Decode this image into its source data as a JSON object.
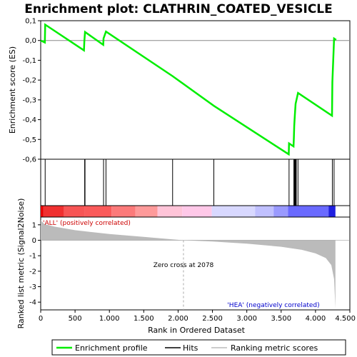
{
  "chart_data": {
    "type": "line",
    "title": "Enrichment plot: CLATHRIN_COATED_VESICLE",
    "xlabel": "Rank in Ordered Dataset",
    "ylabel_top": "Enrichment score (ES)",
    "ylabel_bottom": "Ranked list metric (Signal2Noise)",
    "xlim": [
      0,
      4500
    ],
    "ylim_top": [
      -0.6,
      0.1
    ],
    "ylim_bottom": [
      -4.5,
      1.5
    ],
    "x_ticks": [
      0,
      500,
      1000,
      1500,
      2000,
      2500,
      3000,
      3500,
      4000,
      4500
    ],
    "x_tick_labels": [
      "0",
      "500",
      "1.000",
      "1.500",
      "2.000",
      "2.500",
      "3.000",
      "3.500",
      "4.000",
      "4.500"
    ],
    "y_ticks_top": [
      0.1,
      0.0,
      -0.1,
      -0.2,
      -0.3,
      -0.4,
      -0.5,
      -0.6
    ],
    "y_tick_labels_top": [
      "0,1",
      "0,0",
      "-0,1",
      "-0,2",
      "-0,3",
      "-0,4",
      "-0,5",
      "-0,6"
    ],
    "y_ticks_bottom": [
      1,
      0,
      -1,
      -2,
      -3,
      -4
    ],
    "y_tick_labels_bottom": [
      "1",
      "0",
      "-1",
      "-2",
      "-3",
      "-4"
    ],
    "n_genes": 4290,
    "zero_cross": 2078,
    "series": [
      {
        "name": "Enrichment profile",
        "color": "#00ee00",
        "points": [
          [
            0,
            0.0
          ],
          [
            60,
            -0.01
          ],
          [
            65,
            0.08
          ],
          [
            630,
            -0.05
          ],
          [
            635,
            -0.005
          ],
          [
            645,
            0.043
          ],
          [
            910,
            -0.022
          ],
          [
            915,
            0.01
          ],
          [
            950,
            0.045
          ],
          [
            1920,
            -0.18
          ],
          [
            2520,
            -0.33
          ],
          [
            3610,
            -0.575
          ],
          [
            3615,
            -0.52
          ],
          [
            3680,
            -0.535
          ],
          [
            3685,
            -0.49
          ],
          [
            3690,
            -0.43
          ],
          [
            3700,
            -0.375
          ],
          [
            3710,
            -0.32
          ],
          [
            3745,
            -0.265
          ],
          [
            4240,
            -0.38
          ],
          [
            4245,
            -0.21
          ],
          [
            4270,
            0.01
          ],
          [
            4300,
            0.003
          ]
        ]
      }
    ],
    "hits": [
      65,
      640,
      645,
      915,
      950,
      1920,
      2520,
      3615,
      3685,
      3690,
      3700,
      3710,
      3720,
      3745,
      4245,
      4270
    ],
    "metric_curve": [
      [
        0,
        1.3
      ],
      [
        50,
        1.05
      ],
      [
        200,
        0.88
      ],
      [
        500,
        0.65
      ],
      [
        1000,
        0.4
      ],
      [
        1500,
        0.22
      ],
      [
        2078,
        0.0
      ],
      [
        2500,
        -0.08
      ],
      [
        3000,
        -0.22
      ],
      [
        3500,
        -0.42
      ],
      [
        3800,
        -0.62
      ],
      [
        4000,
        -0.85
      ],
      [
        4150,
        -1.15
      ],
      [
        4230,
        -1.6
      ],
      [
        4270,
        -2.5
      ],
      [
        4290,
        -4.4
      ]
    ],
    "label_pos": "'ALL' (positively correlated)",
    "label_neg": "'HEA' (negatively correlated)",
    "zero_cross_label": "Zero cross at 2078",
    "legend": [
      {
        "label": "Enrichment profile",
        "color": "#00ee00"
      },
      {
        "label": "Hits",
        "color": "#000000"
      },
      {
        "label": "Ranking metric scores",
        "color": "#bbbbbb"
      }
    ],
    "legend_position": "bottom",
    "colors": {
      "pos_label": "#cc0000",
      "neg_label": "#0000cc",
      "metric_fill": "#bbbbbb",
      "grid_zero": "#888888",
      "zero_cross_line": "#aaaaaa"
    },
    "heat_segments": [
      {
        "from": 0,
        "to": 40,
        "color": "#e60000"
      },
      {
        "from": 40,
        "to": 340,
        "color": "#f03030"
      },
      {
        "from": 340,
        "to": 640,
        "color": "#f75555"
      },
      {
        "from": 640,
        "to": 1030,
        "color": "#fa5a5a"
      },
      {
        "from": 1030,
        "to": 1380,
        "color": "#fc7a7a"
      },
      {
        "from": 1380,
        "to": 1700,
        "color": "#fe9a9a"
      },
      {
        "from": 1700,
        "to": 2060,
        "color": "#ffc4d8"
      },
      {
        "from": 2060,
        "to": 2490,
        "color": "#ffc8e8"
      },
      {
        "from": 2490,
        "to": 3120,
        "color": "#d8d8ff"
      },
      {
        "from": 3120,
        "to": 3390,
        "color": "#c0c0ff"
      },
      {
        "from": 3390,
        "to": 3600,
        "color": "#9a9aff"
      },
      {
        "from": 3600,
        "to": 4190,
        "color": "#6a6aff"
      },
      {
        "from": 4190,
        "to": 4290,
        "color": "#2020e0"
      }
    ]
  }
}
